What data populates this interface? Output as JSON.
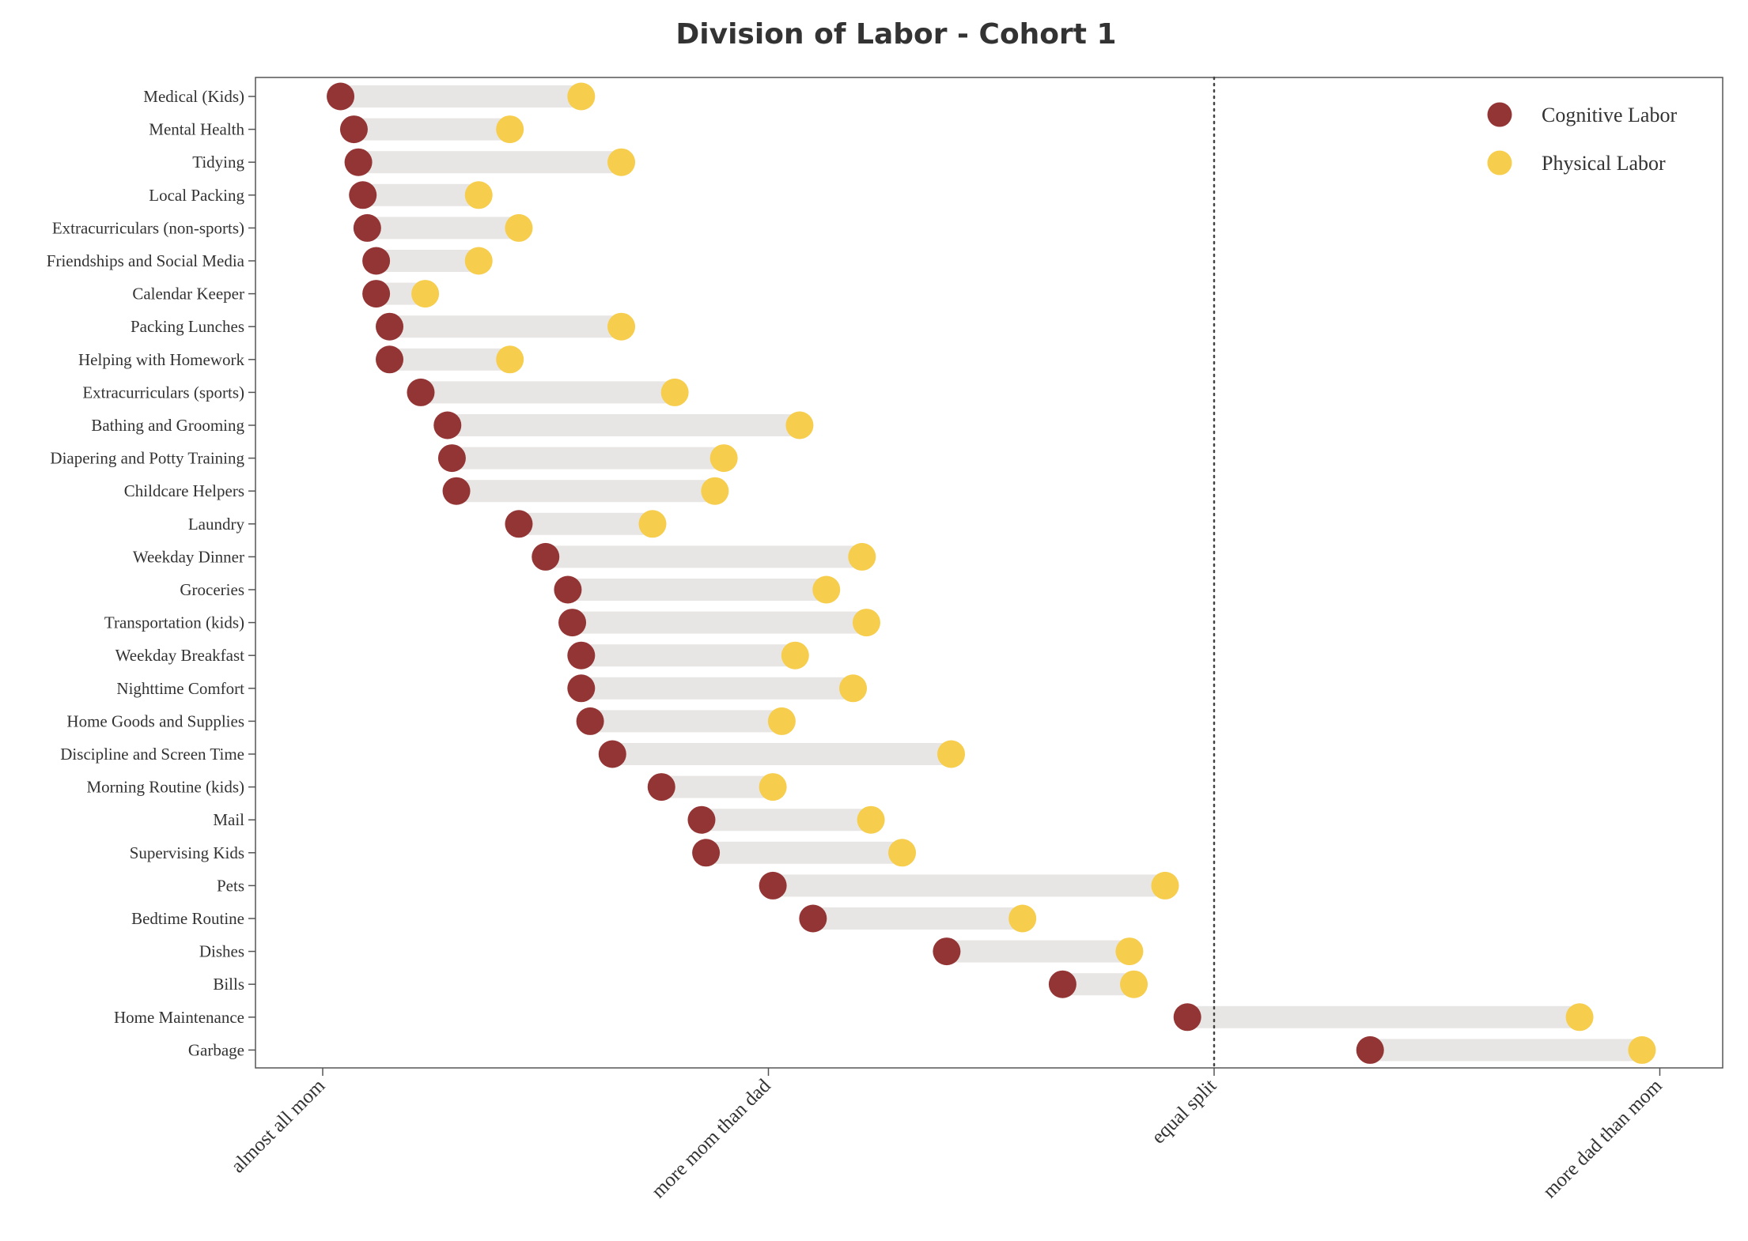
{
  "chart_data": {
    "type": "dumbbell",
    "title": "Division of Labor - Cohort 1",
    "xlabel": "",
    "ylabel": "",
    "x_ticks": [
      {
        "value": 0,
        "label": "almost all mom"
      },
      {
        "value": 1,
        "label": "more mom than dad"
      },
      {
        "value": 2,
        "label": "equal split"
      },
      {
        "value": 3,
        "label": "more dad than mom"
      }
    ],
    "xlim": [
      -0.15,
      3.15
    ],
    "reference_line": {
      "value": 2,
      "style": "dotted"
    },
    "legend": {
      "placement": "top-right"
    },
    "grid": false,
    "colors": {
      "cognitive": "#943535",
      "physical": "#F6CD4C",
      "bar": "#E8E6E4"
    },
    "categories": [
      "Medical (Kids)",
      "Mental Health",
      "Tidying",
      "Local Packing",
      "Extracurriculars (non-sports)",
      "Friendships and Social Media",
      "Calendar Keeper",
      "Packing Lunches",
      "Helping with Homework",
      "Extracurriculars (sports)",
      "Bathing and Grooming",
      "Diapering and Potty Training",
      "Childcare Helpers",
      "Laundry",
      "Weekday Dinner",
      "Groceries",
      "Transportation (kids)",
      "Weekday Breakfast",
      "Nighttime Comfort",
      "Home Goods and Supplies",
      "Discipline and Screen Time",
      "Morning Routine (kids)",
      "Mail",
      "Supervising Kids",
      "Pets",
      "Bedtime Routine",
      "Dishes",
      "Bills",
      "Home Maintenance",
      "Garbage"
    ],
    "series": [
      {
        "name": "Cognitive Labor",
        "values": [
          0.04,
          0.07,
          0.08,
          0.09,
          0.1,
          0.12,
          0.12,
          0.15,
          0.15,
          0.22,
          0.28,
          0.29,
          0.3,
          0.44,
          0.5,
          0.55,
          0.56,
          0.58,
          0.58,
          0.6,
          0.65,
          0.76,
          0.85,
          0.86,
          1.01,
          1.1,
          1.4,
          1.66,
          1.94,
          2.35
        ]
      },
      {
        "name": "Physical Labor",
        "values": [
          0.58,
          0.42,
          0.67,
          0.35,
          0.44,
          0.35,
          0.23,
          0.67,
          0.42,
          0.79,
          1.07,
          0.9,
          0.88,
          0.74,
          1.21,
          1.13,
          1.22,
          1.06,
          1.19,
          1.03,
          1.41,
          1.01,
          1.23,
          1.3,
          1.89,
          1.57,
          1.81,
          1.82,
          2.82,
          2.96
        ]
      }
    ]
  }
}
